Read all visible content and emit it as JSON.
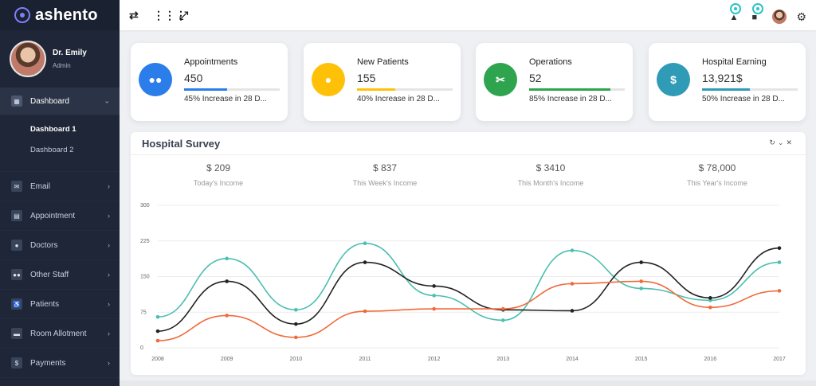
{
  "brand": {
    "name": "ashento",
    "logo_icon": "brand-logo-icon"
  },
  "user": {
    "name": "Dr. Emily",
    "role": "Admin"
  },
  "nav": {
    "dashboard": {
      "label": "Dashboard",
      "sub": [
        "Dashboard 1",
        "Dashboard 2"
      ]
    },
    "items": [
      {
        "label": "Email",
        "icon": "email-icon"
      },
      {
        "label": "Appointment",
        "icon": "calendar-icon"
      },
      {
        "label": "Doctors",
        "icon": "doctor-icon"
      },
      {
        "label": "Other Staff",
        "icon": "staff-icon"
      },
      {
        "label": "Patients",
        "icon": "wheelchair-icon"
      },
      {
        "label": "Room Allotment",
        "icon": "bed-icon"
      },
      {
        "label": "Payments",
        "icon": "payment-icon"
      }
    ]
  },
  "header": {
    "icons": [
      "swap-icon",
      "apps-grid-icon",
      "fullscreen-icon",
      "notification-bell-icon",
      "message-icon",
      "settings-gear-icon"
    ]
  },
  "cards": [
    {
      "title": "Appointments",
      "value": "450",
      "desc": "45% Increase in 28 D...",
      "progress": 0.45,
      "color": "#2b7de9",
      "icon": "group-icon"
    },
    {
      "title": "New Patients",
      "value": "155",
      "desc": "40% Increase in 28 D...",
      "progress": 0.4,
      "color": "#ffc107",
      "icon": "user-icon"
    },
    {
      "title": "Operations",
      "value": "52",
      "desc": "85% Increase in 28 D...",
      "progress": 0.85,
      "color": "#2ea44f",
      "icon": "scissors-icon"
    },
    {
      "title": "Hospital Earning",
      "value": "13,921$",
      "desc": "50% Increase in 28 D...",
      "progress": 0.5,
      "color": "#2f9bb7",
      "icon": "dollar-icon"
    }
  ],
  "survey": {
    "title": "Hospital Survey",
    "incomes": [
      {
        "value": "$ 209",
        "label": "Today's Income"
      },
      {
        "value": "$ 837",
        "label": "This Week's Income"
      },
      {
        "value": "$ 3410",
        "label": "This Month's Income"
      },
      {
        "value": "$ 78,000",
        "label": "This Year's Income"
      }
    ]
  },
  "chart_data": {
    "type": "line",
    "x": [
      "2008",
      "2009",
      "2010",
      "2011",
      "2012",
      "2013",
      "2014",
      "2015",
      "2016",
      "2017"
    ],
    "yticks": [
      0,
      75,
      150,
      225,
      300
    ],
    "ylim": [
      0,
      300
    ],
    "grid": true,
    "series": [
      {
        "color": "#4bbfb0",
        "values": [
          65,
          188,
          80,
          220,
          110,
          58,
          205,
          125,
          100,
          180
        ]
      },
      {
        "color": "#222222",
        "values": [
          35,
          140,
          50,
          180,
          130,
          80,
          78,
          180,
          105,
          210
        ]
      },
      {
        "color": "#f06a3a",
        "values": [
          15,
          68,
          22,
          77,
          82,
          82,
          135,
          140,
          85,
          120
        ]
      }
    ]
  }
}
